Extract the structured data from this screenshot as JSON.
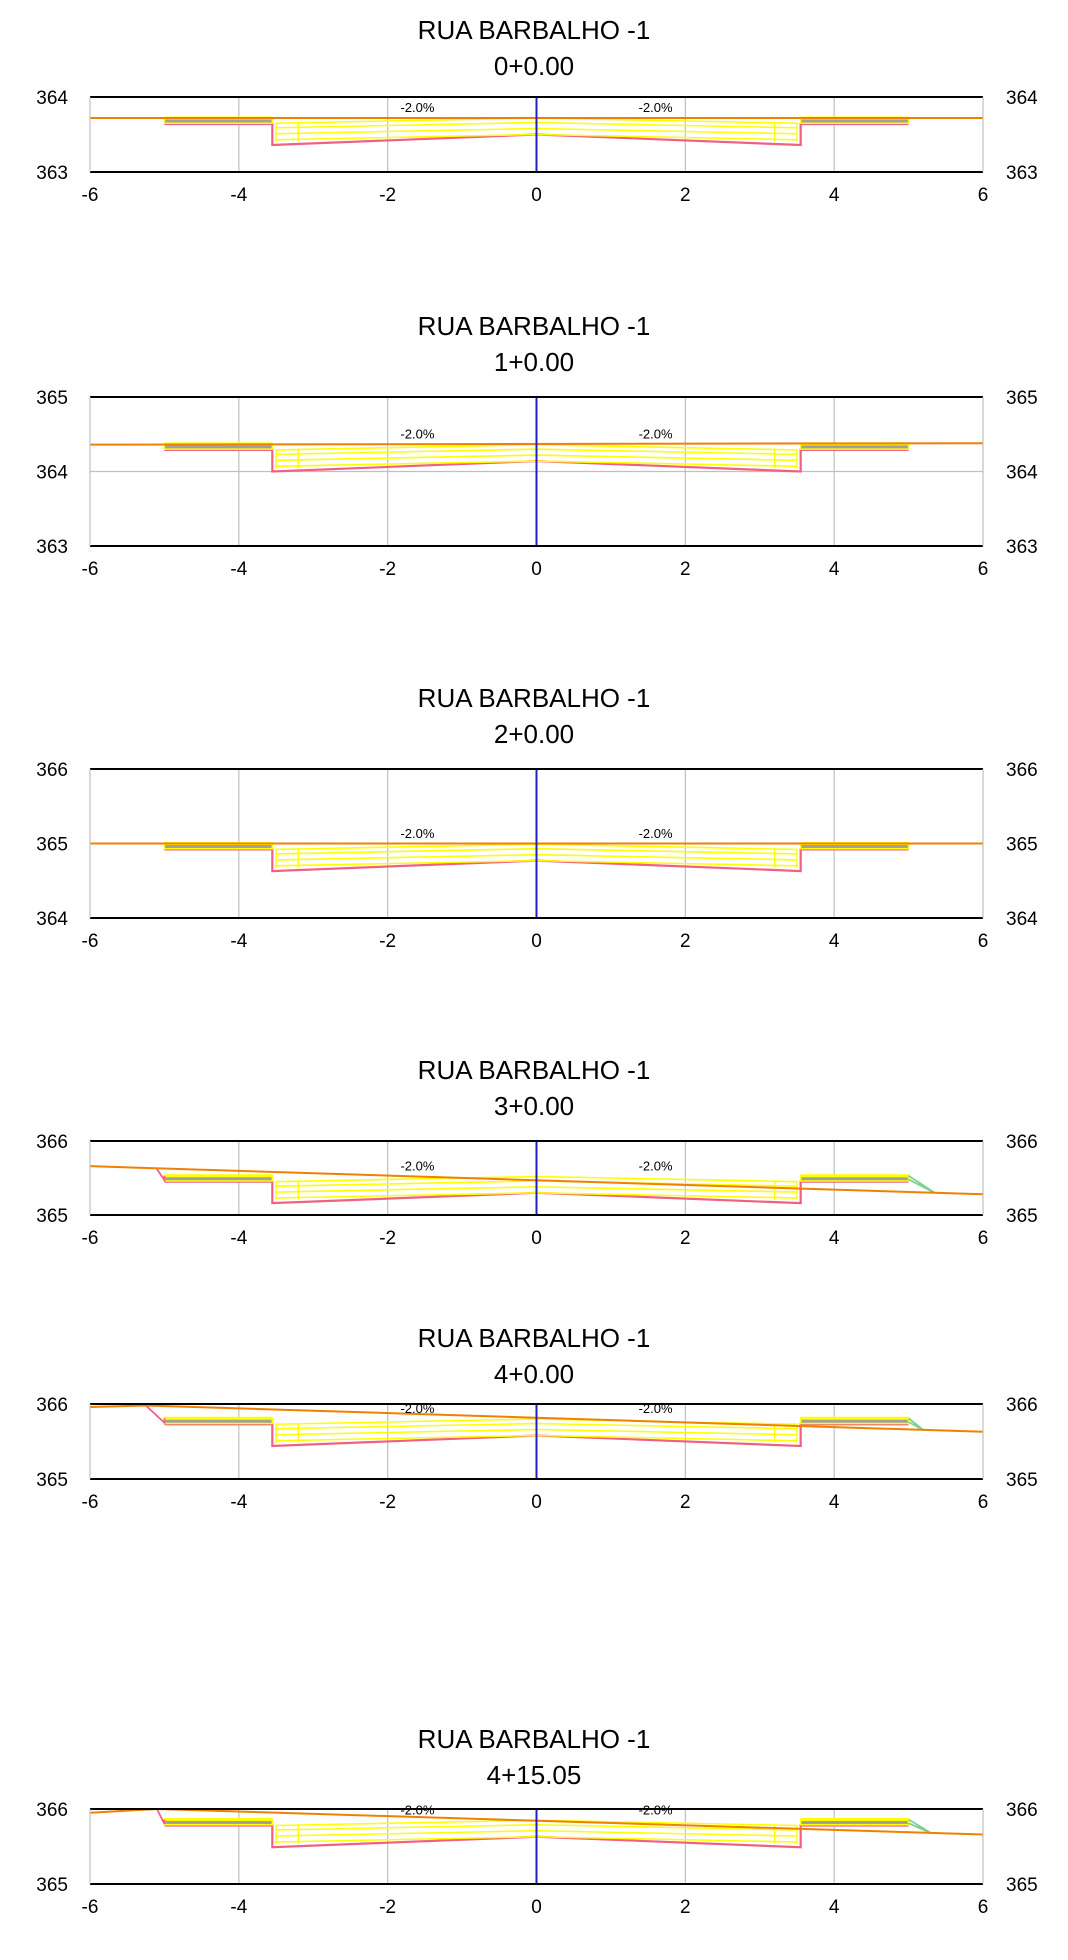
{
  "chart_data": [
    {
      "type": "line",
      "title": "RUA BARBALHO -1",
      "subtitle": "0+0.00",
      "xlim": [
        -6,
        6
      ],
      "x_ticks": [
        "-6",
        "-4",
        "-2",
        "0",
        "2",
        "4",
        "6"
      ],
      "ylim": [
        363,
        364
      ],
      "y_ticks": [
        "363",
        "364"
      ],
      "slope_labels": [
        "-2.0%",
        "-2.0%"
      ],
      "grid": true,
      "ground_line": [
        [
          -6,
          363.72
        ],
        [
          6,
          363.72
        ]
      ],
      "design": {
        "center": 363.72,
        "sidewalk": 363.72,
        "left_daylight": null,
        "right_daylight": null
      },
      "series": [
        {
          "values": [
            363.72,
            363.72
          ]
        }
      ]
    },
    {
      "type": "line",
      "title": "RUA BARBALHO -1",
      "subtitle": "1+0.00",
      "xlim": [
        -6,
        6
      ],
      "x_ticks": [
        "-6",
        "-4",
        "-2",
        "0",
        "2",
        "4",
        "6"
      ],
      "ylim": [
        363,
        365
      ],
      "y_ticks": [
        "363",
        "364",
        "365"
      ],
      "slope_labels": [
        "-2.0%",
        "-2.0%"
      ],
      "grid": true,
      "ground_line": [
        [
          -6,
          364.36
        ],
        [
          6,
          364.38
        ]
      ],
      "design": {
        "center": 364.36,
        "sidewalk": 364.37,
        "left_daylight": null,
        "right_daylight": null
      },
      "series": [
        {
          "values": [
            364.36,
            364.38
          ]
        }
      ]
    },
    {
      "type": "line",
      "title": "RUA BARBALHO -1",
      "subtitle": "2+0.00",
      "xlim": [
        -6,
        6
      ],
      "x_ticks": [
        "-6",
        "-4",
        "-2",
        "0",
        "2",
        "4",
        "6"
      ],
      "ylim": [
        364,
        366
      ],
      "y_ticks": [
        "364",
        "365",
        "366"
      ],
      "slope_labels": [
        "-2.0%",
        "-2.0%"
      ],
      "grid": true,
      "ground_line": [
        [
          -6,
          365.0
        ],
        [
          6,
          365.0
        ]
      ],
      "design": {
        "center": 364.99,
        "sidewalk": 365.0,
        "left_daylight": null,
        "right_daylight": null
      },
      "series": [
        {
          "values": [
            365.0,
            365.0
          ]
        }
      ]
    },
    {
      "type": "line",
      "title": "RUA BARBALHO -1",
      "subtitle": "3+0.00",
      "xlim": [
        -6,
        6
      ],
      "x_ticks": [
        "-6",
        "-4",
        "-2",
        "0",
        "2",
        "4",
        "6"
      ],
      "ylim": [
        365,
        366
      ],
      "y_ticks": [
        "365",
        "366"
      ],
      "slope_labels": [
        "-2.0%",
        "-2.0%"
      ],
      "grid": true,
      "ground_line": [
        [
          -6,
          365.66
        ],
        [
          6,
          365.28
        ]
      ],
      "design": {
        "center": 365.52,
        "sidewalk": 365.53,
        "left_daylight": [
          -5.1,
          365.62
        ],
        "right_daylight": [
          5.35,
          365.3
        ]
      },
      "series": [
        {
          "values": [
            365.66,
            365.28
          ]
        }
      ]
    },
    {
      "type": "line",
      "title": "RUA BARBALHO -1",
      "subtitle": "4+0.00",
      "xlim": [
        -6,
        6
      ],
      "x_ticks": [
        "-6",
        "-4",
        "-2",
        "0",
        "2",
        "4",
        "6"
      ],
      "ylim": [
        365,
        366
      ],
      "y_ticks": [
        "365",
        "366"
      ],
      "slope_labels": [
        "-2.0%",
        "-2.0%"
      ],
      "grid": true,
      "ground_line": [
        [
          -6,
          365.96
        ],
        [
          -5.25,
          365.98
        ],
        [
          6,
          365.63
        ]
      ],
      "design": {
        "center": 365.8,
        "sidewalk": 365.81,
        "left_daylight": [
          -5.25,
          365.98
        ],
        "right_daylight": [
          5.2,
          365.65
        ]
      },
      "series": [
        {
          "values": [
            365.96,
            365.63
          ]
        }
      ]
    },
    {
      "type": "line",
      "title": "RUA BARBALHO -1",
      "subtitle": "4+15.05",
      "xlim": [
        -6,
        6
      ],
      "x_ticks": [
        "-6",
        "-4",
        "-2",
        "0",
        "2",
        "4",
        "6"
      ],
      "ylim": [
        365,
        366
      ],
      "y_ticks": [
        "365",
        "366"
      ],
      "slope_labels": [
        "-2.0%",
        "-2.0%"
      ],
      "grid": true,
      "ground_line": [
        [
          -6,
          365.95
        ],
        [
          -5.1,
          366.0
        ],
        [
          6,
          365.66
        ]
      ],
      "design": {
        "center": 365.85,
        "sidewalk": 365.86,
        "left_daylight": [
          -5.1,
          366.0
        ],
        "right_daylight": [
          5.3,
          365.68
        ]
      },
      "series": [
        {
          "values": [
            365.95,
            365.66
          ]
        }
      ]
    }
  ],
  "colors": {
    "ground": "#f08000",
    "centerline": "#2020c0",
    "grid": "#c0c0c0",
    "frame": "#000000",
    "subgrade": "#f06080",
    "pavement": "#ffff00",
    "sidewalk_fill": "#a0a0a0",
    "side_slope": "#80d090"
  }
}
